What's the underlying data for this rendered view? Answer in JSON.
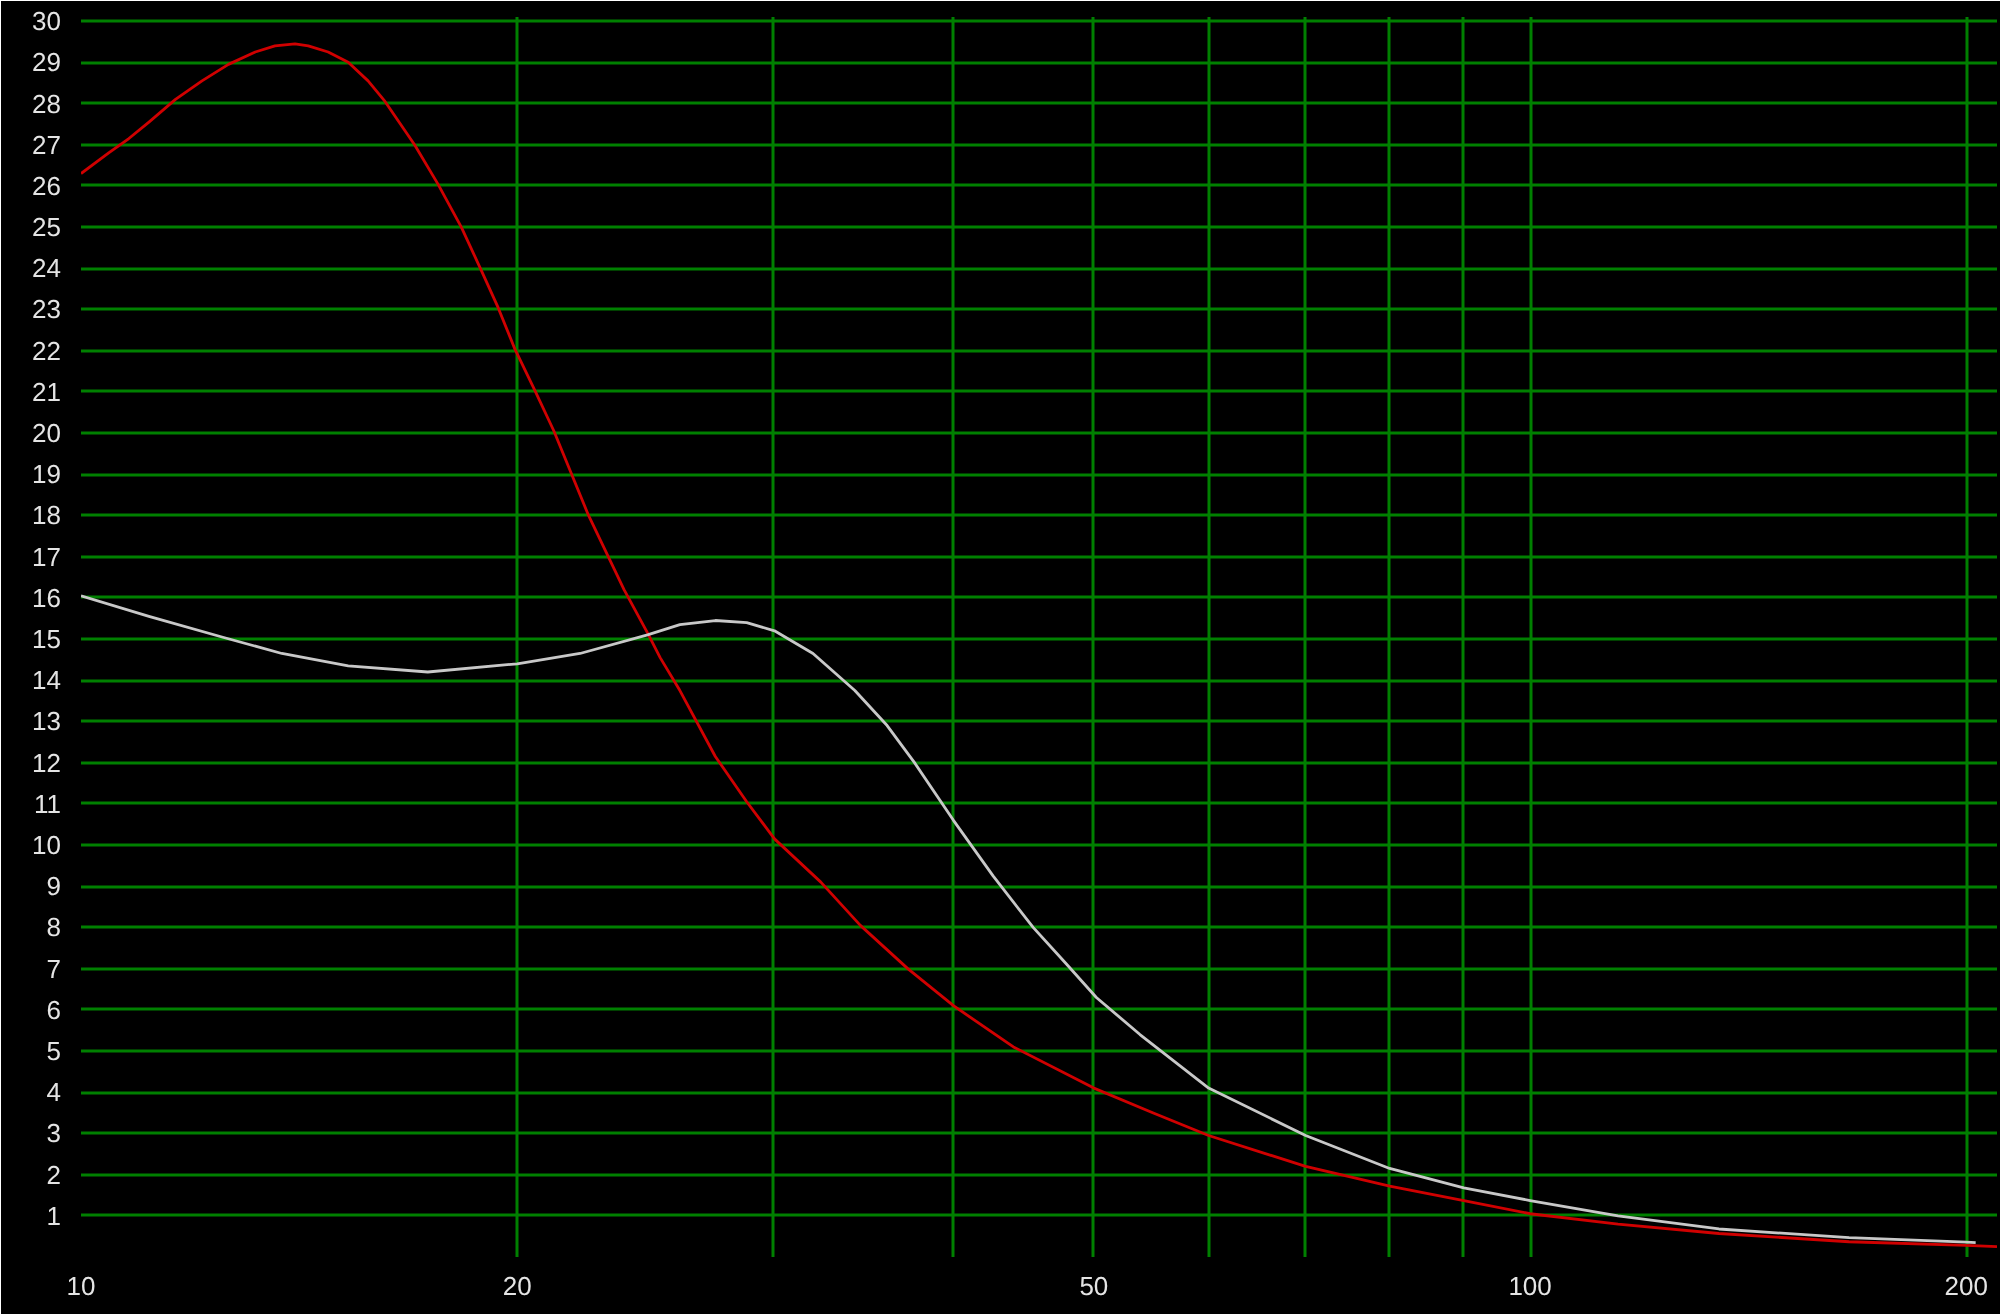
{
  "chart_data": {
    "type": "line",
    "log": "x",
    "grid": true,
    "marker": "none",
    "line_style": "solid",
    "xlim": [
      10,
      210
    ],
    "ylim": [
      0,
      30.1
    ],
    "xticks": [
      10,
      20,
      {
        "value": 30,
        "label": null
      },
      {
        "value": 40,
        "label": null
      },
      50,
      {
        "value": 60,
        "label": null
      },
      {
        "value": 70,
        "label": null
      },
      {
        "value": 80,
        "label": null
      },
      {
        "value": 90,
        "label": null
      },
      100,
      200
    ],
    "yticks": [
      {
        "value": 0,
        "label": null
      },
      1,
      2,
      3,
      4,
      5,
      6,
      7,
      8,
      9,
      10,
      11,
      12,
      13,
      14,
      15,
      16,
      17,
      18,
      19,
      20,
      21,
      22,
      23,
      24,
      25,
      26,
      27,
      28,
      29,
      30
    ],
    "series": [
      {
        "color": "#d00000",
        "x": [
          10,
          10.45,
          10.79,
          11.14,
          11.62,
          12.12,
          12.64,
          13.19,
          13.61,
          14.05,
          14.35,
          14.81,
          15.29,
          15.78,
          16.21,
          16.99,
          17.63,
          18.3,
          18.89,
          19.4,
          19.92,
          20.56,
          21.2,
          22.4,
          23.7,
          24.6,
          25.1,
          25.9,
          27.4,
          28.8,
          30.1,
          32.4,
          34.5,
          37.2,
          40,
          44,
          50,
          54.9,
          60,
          70,
          80,
          90,
          100,
          115,
          135,
          166,
          200,
          210
        ],
        "values": [
          26.3,
          26.8,
          27.15,
          27.55,
          28.1,
          28.55,
          28.95,
          29.25,
          29.4,
          29.45,
          29.4,
          29.25,
          29.0,
          28.55,
          28.05,
          27.0,
          26.05,
          25.0,
          23.95,
          23.05,
          22.05,
          21.05,
          20.05,
          18.0,
          16.2,
          15.15,
          14.55,
          13.75,
          12.15,
          11.05,
          10.15,
          9.1,
          8.05,
          7.0,
          6.1,
          5.1,
          4.1,
          3.5,
          2.95,
          2.2,
          1.72,
          1.37,
          1.05,
          0.8,
          0.57,
          0.37,
          0.28,
          0.25
        ]
      },
      {
        "color": "#c8c8c8",
        "x": [
          10,
          11.14,
          12.51,
          13.76,
          15.29,
          17.35,
          20,
          22.1,
          24.6,
          25.9,
          27.4,
          28.8,
          30.1,
          32,
          34.2,
          36,
          37.6,
          40,
          42.6,
          45.4,
          47.9,
          50.2,
          53.8,
          60,
          70,
          80,
          90,
          100,
          115,
          135,
          166,
          200,
          203
        ],
        "values": [
          16.05,
          15.55,
          15.05,
          14.65,
          14.35,
          14.2,
          14.4,
          14.65,
          15.1,
          15.35,
          15.45,
          15.4,
          15.2,
          14.65,
          13.75,
          12.9,
          12.0,
          10.6,
          9.25,
          8.0,
          7.1,
          6.3,
          5.4,
          4.1,
          2.95,
          2.15,
          1.68,
          1.37,
          1.0,
          0.68,
          0.47,
          0.36,
          0.35
        ]
      }
    ]
  }
}
